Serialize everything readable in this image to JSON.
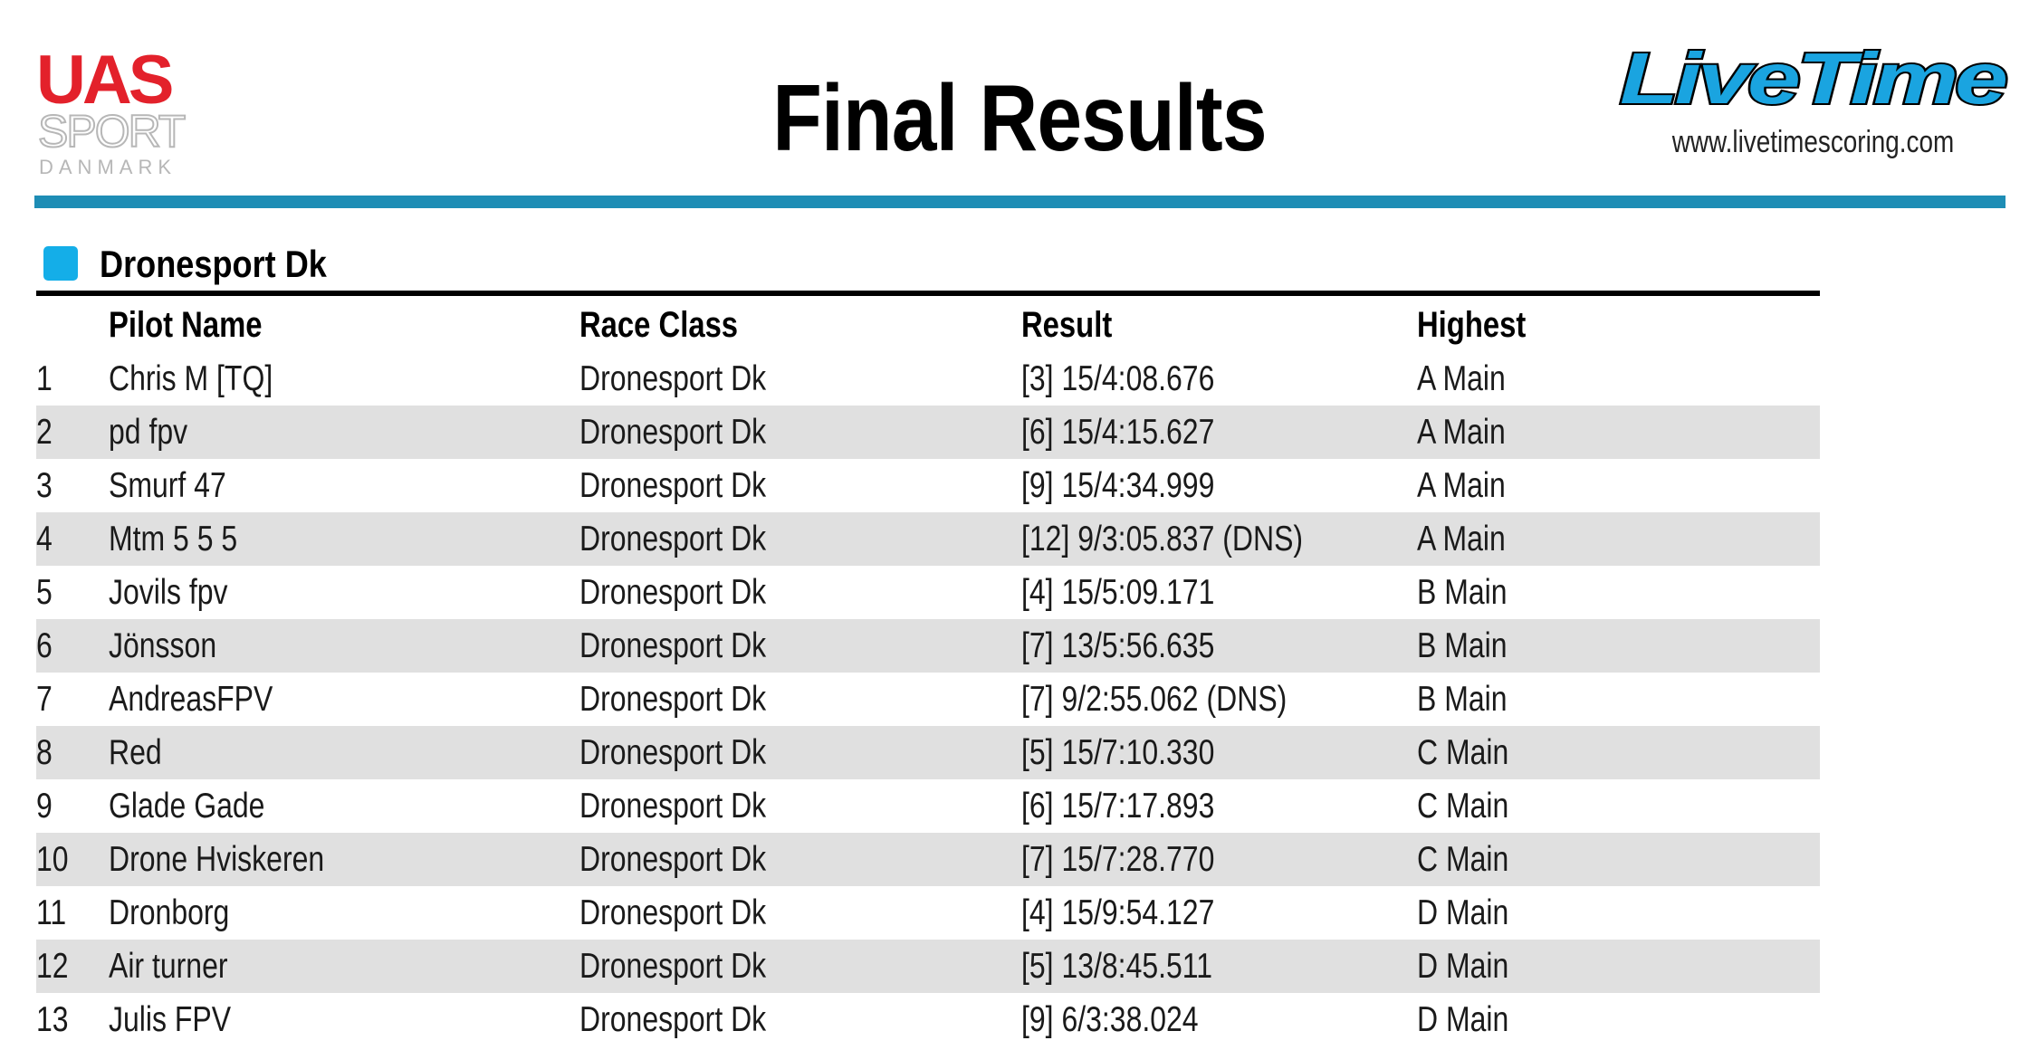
{
  "header": {
    "title": "Final Results",
    "uas_logo": {
      "line1": "UAS",
      "line2": "SPORT",
      "line3": "DANMARK",
      "red": "#e3212b",
      "grey": "#b7b7b7"
    },
    "livetime_logo": {
      "text": "LiveTime",
      "url": "www.livetimescoring.com",
      "blue": "#1aa4e0"
    },
    "bar_color": "#1e8db5"
  },
  "section": {
    "title": "Dronesport Dk",
    "swatch_color": "#14aee8"
  },
  "table": {
    "columns": {
      "pilot": "Pilot Name",
      "class": "Race Class",
      "result": "Result",
      "highest": "Highest"
    },
    "rows": [
      {
        "pos": "1",
        "pilot": "Chris M [TQ]",
        "class": "Dronesport Dk",
        "result": "[3] 15/4:08.676",
        "highest": "A Main"
      },
      {
        "pos": "2",
        "pilot": "pd fpv",
        "class": "Dronesport Dk",
        "result": "[6] 15/4:15.627",
        "highest": "A Main"
      },
      {
        "pos": "3",
        "pilot": "Smurf 47",
        "class": "Dronesport Dk",
        "result": "[9] 15/4:34.999",
        "highest": "A Main"
      },
      {
        "pos": "4",
        "pilot": "Mtm 5 5 5",
        "class": "Dronesport Dk",
        "result": "[12] 9/3:05.837 (DNS)",
        "highest": "A Main"
      },
      {
        "pos": "5",
        "pilot": "Jovils fpv",
        "class": "Dronesport Dk",
        "result": "[4] 15/5:09.171",
        "highest": "B Main"
      },
      {
        "pos": "6",
        "pilot": "Jönsson",
        "class": "Dronesport Dk",
        "result": "[7] 13/5:56.635",
        "highest": "B Main"
      },
      {
        "pos": "7",
        "pilot": "AndreasFPV",
        "class": "Dronesport Dk",
        "result": "[7] 9/2:55.062 (DNS)",
        "highest": "B Main"
      },
      {
        "pos": "8",
        "pilot": "Red",
        "class": "Dronesport Dk",
        "result": "[5] 15/7:10.330",
        "highest": "C Main"
      },
      {
        "pos": "9",
        "pilot": "Glade Gade",
        "class": "Dronesport Dk",
        "result": "[6] 15/7:17.893",
        "highest": "C Main"
      },
      {
        "pos": "10",
        "pilot": "Drone Hviskeren",
        "class": "Dronesport Dk",
        "result": "[7] 15/7:28.770",
        "highest": "C Main"
      },
      {
        "pos": "11",
        "pilot": "Dronborg",
        "class": "Dronesport Dk",
        "result": "[4] 15/9:54.127",
        "highest": "D Main"
      },
      {
        "pos": "12",
        "pilot": "Air turner",
        "class": "Dronesport Dk",
        "result": "[5] 13/8:45.511",
        "highest": "D Main"
      },
      {
        "pos": "13",
        "pilot": "Julis FPV",
        "class": "Dronesport Dk",
        "result": "[9] 6/3:38.024",
        "highest": "D Main"
      }
    ]
  }
}
